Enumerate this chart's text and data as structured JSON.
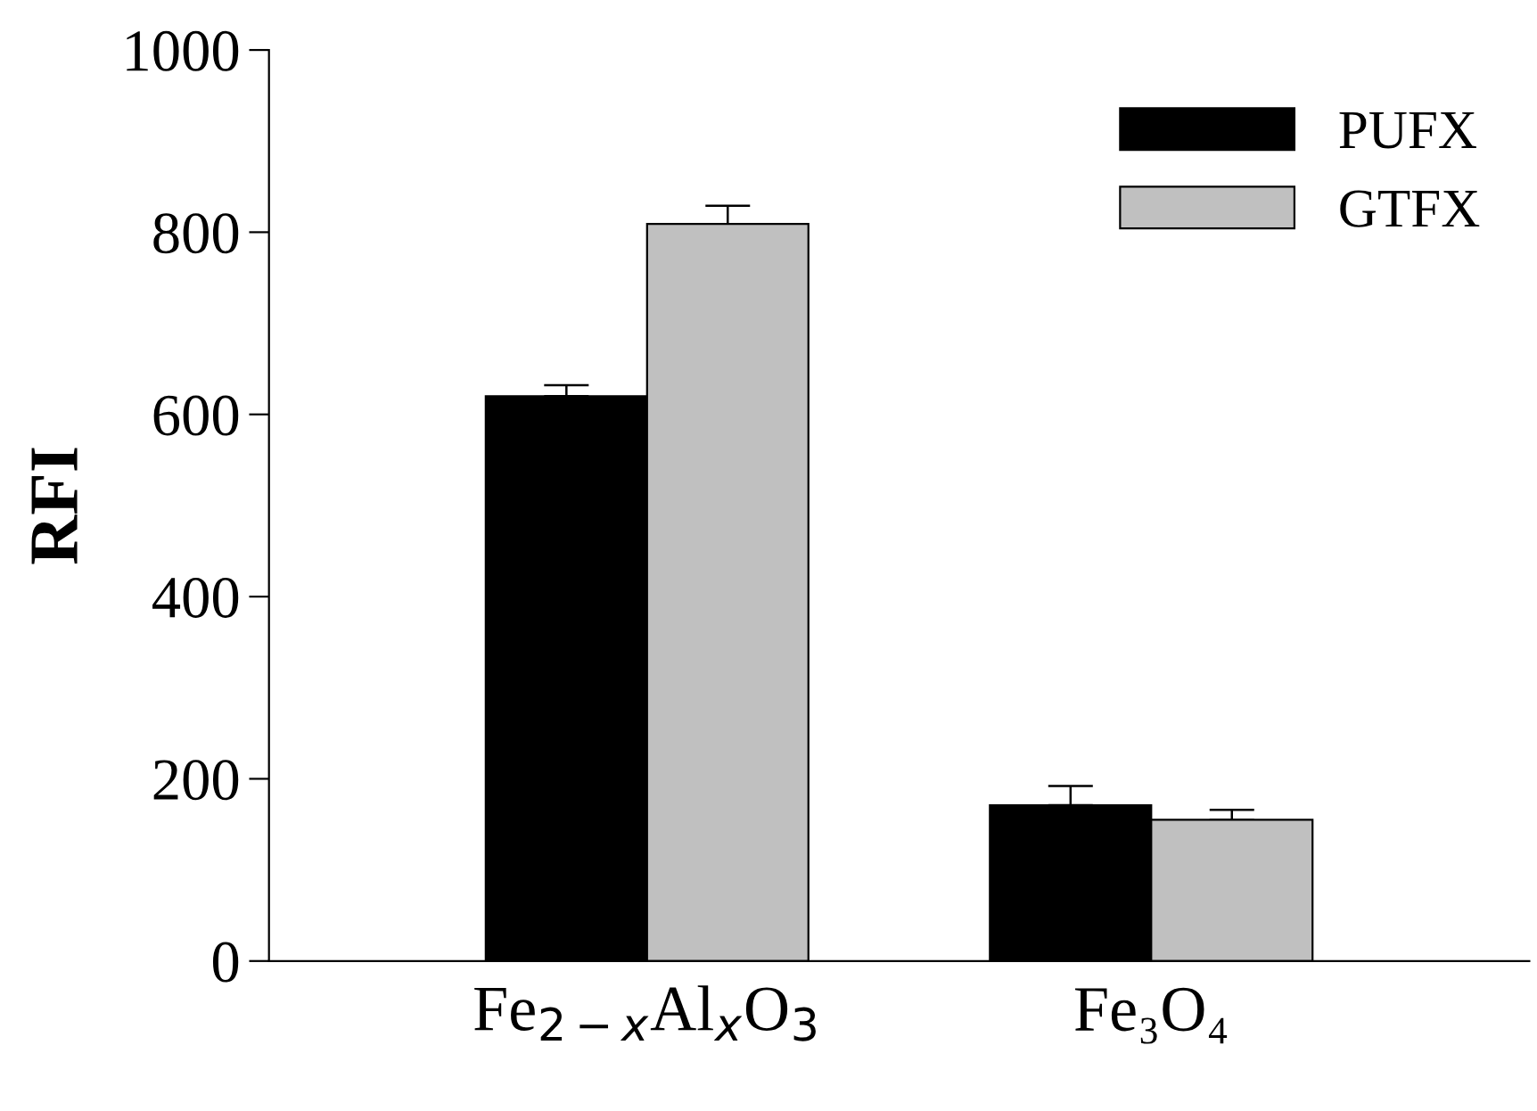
{
  "chart_data": {
    "type": "bar",
    "ylabel": "RFI",
    "categories": [
      "Fe$_{2−x}$Al$_{x}$O$_{3}$",
      "Fe₃O₄"
    ],
    "series": [
      {
        "name": "PUFX",
        "color": "#000000",
        "values": [
          620,
          171
        ],
        "errors": [
          [
            620,
            632
          ],
          [
            171,
            192
          ]
        ]
      },
      {
        "name": "GTFX",
        "color": "#c0c0c0",
        "values": [
          809,
          155
        ],
        "errors": [
          [
            809,
            829
          ],
          [
            155,
            166
          ]
        ]
      }
    ],
    "ylim": [
      0,
      1000
    ],
    "yticks": [
      0,
      200,
      400,
      600,
      800,
      1000
    ],
    "grid": false,
    "legend": "top right"
  }
}
